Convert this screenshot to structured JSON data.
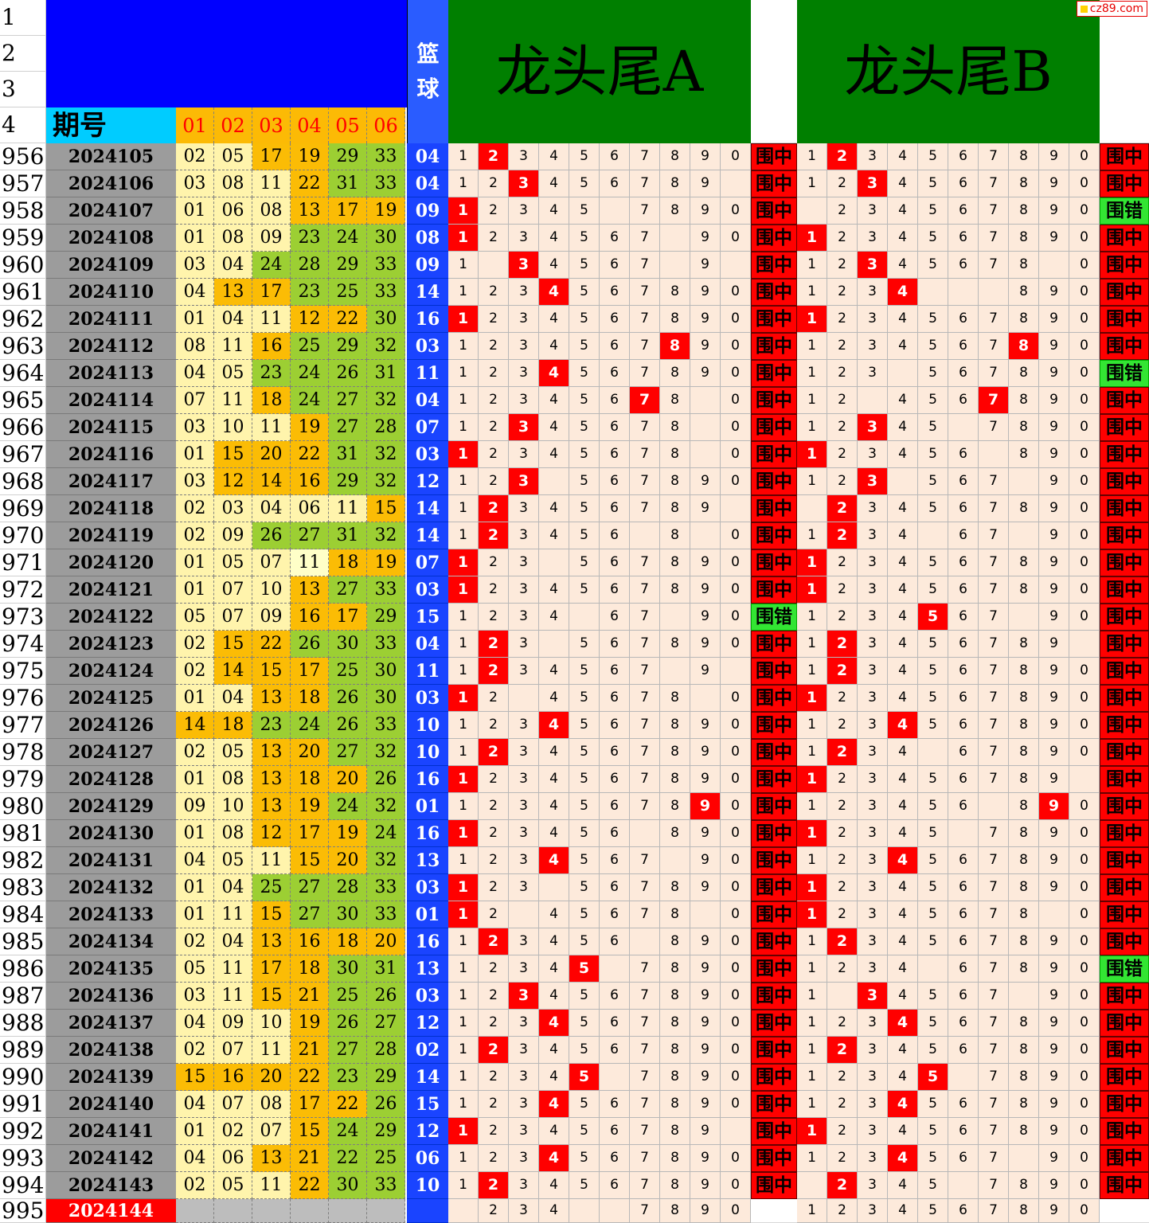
{
  "header": {
    "period_label": "期号",
    "ball_cols": [
      "01",
      "02",
      "03",
      "04",
      "05",
      "06"
    ],
    "basketball_label": [
      "篮",
      "球"
    ],
    "title_a": "龙头尾A",
    "title_b": "龙头尾B",
    "top_row_numbers": [
      "1",
      "2",
      "3",
      "4"
    ],
    "digits": [
      "1",
      "2",
      "3",
      "4",
      "5",
      "6",
      "7",
      "8",
      "9",
      "0"
    ]
  },
  "watermark": "cz89.com",
  "result_labels": {
    "hit": "围中",
    "miss": "围错"
  },
  "colors": {
    "lightyellow": "#fff4ac",
    "green": "#9ccf33",
    "orange": "#fbbc05",
    "basket": "#1a44ff",
    "hit": "#ff0000",
    "miss": "#33e533",
    "period": "#9c9c9c"
  },
  "rows": [
    {
      "n": "956",
      "p": "2024105",
      "nums": [
        "02",
        "05",
        "17",
        "19",
        "29",
        "33"
      ],
      "bg": [
        "lg",
        "lg",
        "o",
        "o",
        "g",
        "g"
      ],
      "bb": "04",
      "a": {
        "hit": "2",
        "empty": []
      },
      "ra": "hit",
      "b": {
        "hit": "2",
        "empty": []
      },
      "rb": "hit"
    },
    {
      "n": "957",
      "p": "2024106",
      "nums": [
        "03",
        "08",
        "11",
        "22",
        "31",
        "33"
      ],
      "bg": [
        "lg",
        "lg",
        "lg",
        "o",
        "g",
        "g"
      ],
      "bb": "04",
      "a": {
        "hit": "3",
        "empty": [
          "0"
        ]
      },
      "ra": "hit",
      "b": {
        "hit": "3",
        "empty": []
      },
      "rb": "hit"
    },
    {
      "n": "958",
      "p": "2024107",
      "nums": [
        "01",
        "06",
        "08",
        "13",
        "17",
        "19"
      ],
      "bg": [
        "lg",
        "lg",
        "lg",
        "o",
        "o",
        "o"
      ],
      "bb": "09",
      "a": {
        "hit": "1",
        "empty": [
          "6"
        ]
      },
      "ra": "hit",
      "b": {
        "hit": "",
        "empty": [
          "1"
        ]
      },
      "rb": "miss"
    },
    {
      "n": "959",
      "p": "2024108",
      "nums": [
        "01",
        "08",
        "09",
        "23",
        "24",
        "30"
      ],
      "bg": [
        "lg",
        "lg",
        "lg",
        "g",
        "g",
        "g"
      ],
      "bb": "08",
      "a": {
        "hit": "1",
        "empty": [
          "8"
        ]
      },
      "ra": "hit",
      "b": {
        "hit": "1",
        "empty": []
      },
      "rb": "hit"
    },
    {
      "n": "960",
      "p": "2024109",
      "nums": [
        "03",
        "04",
        "24",
        "28",
        "29",
        "33"
      ],
      "bg": [
        "lg",
        "lg",
        "g",
        "g",
        "g",
        "g"
      ],
      "bb": "09",
      "a": {
        "hit": "3",
        "empty": [
          "2",
          "8",
          "0"
        ]
      },
      "ra": "hit",
      "b": {
        "hit": "3",
        "empty": [
          "9"
        ]
      },
      "rb": "hit"
    },
    {
      "n": "961",
      "p": "2024110",
      "nums": [
        "04",
        "13",
        "17",
        "23",
        "25",
        "33"
      ],
      "bg": [
        "lg",
        "o",
        "o",
        "g",
        "g",
        "g"
      ],
      "bb": "14",
      "a": {
        "hit": "4",
        "empty": []
      },
      "ra": "hit",
      "b": {
        "hit": "4",
        "empty": [
          "5",
          "6",
          "7"
        ]
      },
      "rb": "hit"
    },
    {
      "n": "962",
      "p": "2024111",
      "nums": [
        "01",
        "04",
        "11",
        "12",
        "22",
        "30"
      ],
      "bg": [
        "lg",
        "lg",
        "lg",
        "o",
        "o",
        "g"
      ],
      "bb": "16",
      "a": {
        "hit": "1",
        "empty": []
      },
      "ra": "hit",
      "b": {
        "hit": "1",
        "empty": []
      },
      "rb": "hit"
    },
    {
      "n": "963",
      "p": "2024112",
      "nums": [
        "08",
        "11",
        "16",
        "25",
        "29",
        "32"
      ],
      "bg": [
        "lg",
        "lg",
        "o",
        "g",
        "g",
        "g"
      ],
      "bb": "03",
      "a": {
        "hit": "8",
        "empty": []
      },
      "ra": "hit",
      "b": {
        "hit": "8",
        "empty": []
      },
      "rb": "hit"
    },
    {
      "n": "964",
      "p": "2024113",
      "nums": [
        "04",
        "05",
        "23",
        "24",
        "26",
        "31"
      ],
      "bg": [
        "lg",
        "lg",
        "g",
        "g",
        "g",
        "g"
      ],
      "bb": "11",
      "a": {
        "hit": "4",
        "empty": []
      },
      "ra": "hit",
      "b": {
        "hit": "",
        "empty": [
          "4"
        ]
      },
      "rb": "miss"
    },
    {
      "n": "965",
      "p": "2024114",
      "nums": [
        "07",
        "11",
        "18",
        "24",
        "27",
        "32"
      ],
      "bg": [
        "lg",
        "lg",
        "o",
        "g",
        "g",
        "g"
      ],
      "bb": "04",
      "a": {
        "hit": "7",
        "empty": [
          "9"
        ]
      },
      "ra": "hit",
      "b": {
        "hit": "7",
        "empty": [
          "3"
        ]
      },
      "rb": "hit"
    },
    {
      "n": "966",
      "p": "2024115",
      "nums": [
        "03",
        "10",
        "11",
        "19",
        "27",
        "28"
      ],
      "bg": [
        "lg",
        "lg",
        "lg",
        "o",
        "g",
        "g"
      ],
      "bb": "07",
      "a": {
        "hit": "3",
        "empty": [
          "9"
        ]
      },
      "ra": "hit",
      "b": {
        "hit": "3",
        "empty": [
          "6"
        ]
      },
      "rb": "hit"
    },
    {
      "n": "967",
      "p": "2024116",
      "nums": [
        "01",
        "15",
        "20",
        "22",
        "31",
        "32"
      ],
      "bg": [
        "lg",
        "o",
        "o",
        "o",
        "g",
        "g"
      ],
      "bb": "03",
      "a": {
        "hit": "1",
        "empty": [
          "9"
        ]
      },
      "ra": "hit",
      "b": {
        "hit": "1",
        "empty": [
          "7"
        ]
      },
      "rb": "hit"
    },
    {
      "n": "968",
      "p": "2024117",
      "nums": [
        "03",
        "12",
        "14",
        "16",
        "29",
        "32"
      ],
      "bg": [
        "lg",
        "o",
        "o",
        "o",
        "g",
        "g"
      ],
      "bb": "12",
      "a": {
        "hit": "3",
        "empty": [
          "4"
        ]
      },
      "ra": "hit",
      "b": {
        "hit": "3",
        "empty": [
          "4",
          "8"
        ]
      },
      "rb": "hit"
    },
    {
      "n": "969",
      "p": "2024118",
      "nums": [
        "02",
        "03",
        "04",
        "06",
        "11",
        "15"
      ],
      "bg": [
        "lg",
        "lg",
        "lg",
        "lg",
        "lg",
        "o"
      ],
      "bb": "14",
      "a": {
        "hit": "2",
        "empty": [
          "0"
        ]
      },
      "ra": "hit",
      "b": {
        "hit": "2",
        "empty": [
          "1"
        ]
      },
      "rb": "hit"
    },
    {
      "n": "970",
      "p": "2024119",
      "nums": [
        "02",
        "09",
        "26",
        "27",
        "31",
        "32"
      ],
      "bg": [
        "lg",
        "lg",
        "g",
        "g",
        "g",
        "g"
      ],
      "bb": "14",
      "a": {
        "hit": "2",
        "empty": [
          "7",
          "9"
        ]
      },
      "ra": "hit",
      "b": {
        "hit": "2",
        "empty": [
          "5",
          "8"
        ]
      },
      "rb": "hit"
    },
    {
      "n": "971",
      "p": "2024120",
      "nums": [
        "01",
        "05",
        "07",
        "11",
        "18",
        "19"
      ],
      "bg": [
        "lg",
        "lg",
        "lg",
        "ly",
        "o",
        "o"
      ],
      "bb": "07",
      "a": {
        "hit": "1",
        "empty": [
          "4"
        ]
      },
      "ra": "hit",
      "b": {
        "hit": "1",
        "empty": []
      },
      "rb": "hit"
    },
    {
      "n": "972",
      "p": "2024121",
      "nums": [
        "01",
        "07",
        "10",
        "13",
        "27",
        "33"
      ],
      "bg": [
        "lg",
        "lg",
        "lg",
        "o",
        "g",
        "g"
      ],
      "bb": "03",
      "a": {
        "hit": "1",
        "empty": []
      },
      "ra": "hit",
      "b": {
        "hit": "1",
        "empty": []
      },
      "rb": "hit"
    },
    {
      "n": "973",
      "p": "2024122",
      "nums": [
        "05",
        "07",
        "09",
        "16",
        "17",
        "29"
      ],
      "bg": [
        "lg",
        "lg",
        "lg",
        "o",
        "o",
        "g"
      ],
      "bb": "15",
      "a": {
        "hit": "",
        "empty": [
          "5",
          "8"
        ]
      },
      "ra": "miss",
      "b": {
        "hit": "5",
        "empty": [
          "8"
        ]
      },
      "rb": "hit"
    },
    {
      "n": "974",
      "p": "2024123",
      "nums": [
        "02",
        "15",
        "22",
        "26",
        "30",
        "33"
      ],
      "bg": [
        "lg",
        "o",
        "o",
        "g",
        "g",
        "g"
      ],
      "bb": "04",
      "a": {
        "hit": "2",
        "empty": [
          "4"
        ]
      },
      "ra": "hit",
      "b": {
        "hit": "2",
        "empty": [
          "0"
        ]
      },
      "rb": "hit"
    },
    {
      "n": "975",
      "p": "2024124",
      "nums": [
        "02",
        "14",
        "15",
        "17",
        "25",
        "30"
      ],
      "bg": [
        "lg",
        "o",
        "o",
        "o",
        "g",
        "g"
      ],
      "bb": "11",
      "a": {
        "hit": "2",
        "empty": [
          "8",
          "0"
        ]
      },
      "ra": "hit",
      "b": {
        "hit": "2",
        "empty": []
      },
      "rb": "hit"
    },
    {
      "n": "976",
      "p": "2024125",
      "nums": [
        "01",
        "04",
        "13",
        "18",
        "26",
        "30"
      ],
      "bg": [
        "lg",
        "lg",
        "o",
        "o",
        "g",
        "g"
      ],
      "bb": "03",
      "a": {
        "hit": "1",
        "empty": [
          "3",
          "9"
        ]
      },
      "ra": "hit",
      "b": {
        "hit": "1",
        "empty": []
      },
      "rb": "hit"
    },
    {
      "n": "977",
      "p": "2024126",
      "nums": [
        "14",
        "18",
        "23",
        "24",
        "26",
        "33"
      ],
      "bg": [
        "o",
        "o",
        "g",
        "g",
        "g",
        "g"
      ],
      "bb": "10",
      "a": {
        "hit": "4",
        "empty": []
      },
      "ra": "hit",
      "b": {
        "hit": "4",
        "empty": []
      },
      "rb": "hit"
    },
    {
      "n": "978",
      "p": "2024127",
      "nums": [
        "02",
        "05",
        "13",
        "20",
        "27",
        "32"
      ],
      "bg": [
        "lg",
        "lg",
        "o",
        "o",
        "g",
        "g"
      ],
      "bb": "10",
      "a": {
        "hit": "2",
        "empty": []
      },
      "ra": "hit",
      "b": {
        "hit": "2",
        "empty": [
          "5"
        ]
      },
      "rb": "hit"
    },
    {
      "n": "979",
      "p": "2024128",
      "nums": [
        "01",
        "08",
        "13",
        "18",
        "20",
        "26"
      ],
      "bg": [
        "lg",
        "lg",
        "o",
        "o",
        "o",
        "g"
      ],
      "bb": "16",
      "a": {
        "hit": "1",
        "empty": []
      },
      "ra": "hit",
      "b": {
        "hit": "1",
        "empty": [
          "0"
        ]
      },
      "rb": "hit"
    },
    {
      "n": "980",
      "p": "2024129",
      "nums": [
        "09",
        "10",
        "13",
        "19",
        "24",
        "32"
      ],
      "bg": [
        "lg",
        "lg",
        "o",
        "o",
        "g",
        "g"
      ],
      "bb": "01",
      "a": {
        "hit": "9",
        "empty": []
      },
      "ra": "hit",
      "b": {
        "hit": "9",
        "empty": [
          "7"
        ]
      },
      "rb": "hit"
    },
    {
      "n": "981",
      "p": "2024130",
      "nums": [
        "01",
        "08",
        "12",
        "17",
        "19",
        "24"
      ],
      "bg": [
        "lg",
        "lg",
        "o",
        "o",
        "o",
        "g"
      ],
      "bb": "16",
      "a": {
        "hit": "1",
        "empty": [
          "7"
        ]
      },
      "ra": "hit",
      "b": {
        "hit": "1",
        "empty": [
          "6"
        ]
      },
      "rb": "hit"
    },
    {
      "n": "982",
      "p": "2024131",
      "nums": [
        "04",
        "05",
        "11",
        "15",
        "20",
        "32"
      ],
      "bg": [
        "lg",
        "lg",
        "lg",
        "o",
        "o",
        "g"
      ],
      "bb": "13",
      "a": {
        "hit": "4",
        "empty": [
          "8"
        ]
      },
      "ra": "hit",
      "b": {
        "hit": "4",
        "empty": []
      },
      "rb": "hit"
    },
    {
      "n": "983",
      "p": "2024132",
      "nums": [
        "01",
        "04",
        "25",
        "27",
        "28",
        "33"
      ],
      "bg": [
        "lg",
        "lg",
        "g",
        "g",
        "g",
        "g"
      ],
      "bb": "03",
      "a": {
        "hit": "1",
        "empty": [
          "4"
        ]
      },
      "ra": "hit",
      "b": {
        "hit": "1",
        "empty": []
      },
      "rb": "hit"
    },
    {
      "n": "984",
      "p": "2024133",
      "nums": [
        "01",
        "11",
        "15",
        "27",
        "30",
        "33"
      ],
      "bg": [
        "lg",
        "lg",
        "o",
        "g",
        "g",
        "g"
      ],
      "bb": "01",
      "a": {
        "hit": "1",
        "empty": [
          "3",
          "9"
        ]
      },
      "ra": "hit",
      "b": {
        "hit": "1",
        "empty": [
          "9"
        ]
      },
      "rb": "hit"
    },
    {
      "n": "985",
      "p": "2024134",
      "nums": [
        "02",
        "04",
        "13",
        "16",
        "18",
        "20"
      ],
      "bg": [
        "lg",
        "lg",
        "o",
        "o",
        "o",
        "o"
      ],
      "bb": "16",
      "a": {
        "hit": "2",
        "empty": [
          "7"
        ]
      },
      "ra": "hit",
      "b": {
        "hit": "2",
        "empty": []
      },
      "rb": "hit"
    },
    {
      "n": "986",
      "p": "2024135",
      "nums": [
        "05",
        "11",
        "17",
        "18",
        "30",
        "31"
      ],
      "bg": [
        "lg",
        "lg",
        "o",
        "o",
        "g",
        "g"
      ],
      "bb": "13",
      "a": {
        "hit": "5",
        "empty": [
          "6"
        ]
      },
      "ra": "hit",
      "b": {
        "hit": "",
        "empty": [
          "5"
        ]
      },
      "rb": "miss"
    },
    {
      "n": "987",
      "p": "2024136",
      "nums": [
        "03",
        "11",
        "15",
        "21",
        "25",
        "26"
      ],
      "bg": [
        "lg",
        "lg",
        "o",
        "o",
        "g",
        "g"
      ],
      "bb": "03",
      "a": {
        "hit": "3",
        "empty": []
      },
      "ra": "hit",
      "b": {
        "hit": "3",
        "empty": [
          "2",
          "8"
        ]
      },
      "rb": "hit"
    },
    {
      "n": "988",
      "p": "2024137",
      "nums": [
        "04",
        "09",
        "10",
        "19",
        "26",
        "27"
      ],
      "bg": [
        "lg",
        "lg",
        "lg",
        "o",
        "g",
        "g"
      ],
      "bb": "12",
      "a": {
        "hit": "4",
        "empty": []
      },
      "ra": "hit",
      "b": {
        "hit": "4",
        "empty": []
      },
      "rb": "hit"
    },
    {
      "n": "989",
      "p": "2024138",
      "nums": [
        "02",
        "07",
        "11",
        "21",
        "27",
        "28"
      ],
      "bg": [
        "lg",
        "lg",
        "lg",
        "o",
        "g",
        "g"
      ],
      "bb": "02",
      "a": {
        "hit": "2",
        "empty": []
      },
      "ra": "hit",
      "b": {
        "hit": "2",
        "empty": []
      },
      "rb": "hit"
    },
    {
      "n": "990",
      "p": "2024139",
      "nums": [
        "15",
        "16",
        "20",
        "22",
        "23",
        "29"
      ],
      "bg": [
        "o",
        "o",
        "o",
        "o",
        "g",
        "g"
      ],
      "bb": "14",
      "a": {
        "hit": "5",
        "empty": [
          "6"
        ]
      },
      "ra": "hit",
      "b": {
        "hit": "5",
        "empty": [
          "6"
        ]
      },
      "rb": "hit"
    },
    {
      "n": "991",
      "p": "2024140",
      "nums": [
        "04",
        "07",
        "08",
        "17",
        "22",
        "26"
      ],
      "bg": [
        "lg",
        "lg",
        "lg",
        "o",
        "o",
        "g"
      ],
      "bb": "15",
      "a": {
        "hit": "4",
        "empty": []
      },
      "ra": "hit",
      "b": {
        "hit": "4",
        "empty": []
      },
      "rb": "hit"
    },
    {
      "n": "992",
      "p": "2024141",
      "nums": [
        "01",
        "02",
        "07",
        "15",
        "24",
        "29"
      ],
      "bg": [
        "lg",
        "lg",
        "lg",
        "o",
        "g",
        "g"
      ],
      "bb": "12",
      "a": {
        "hit": "1",
        "empty": [
          "0"
        ]
      },
      "ra": "hit",
      "b": {
        "hit": "1",
        "empty": []
      },
      "rb": "hit"
    },
    {
      "n": "993",
      "p": "2024142",
      "nums": [
        "04",
        "06",
        "13",
        "21",
        "22",
        "25"
      ],
      "bg": [
        "lg",
        "lg",
        "o",
        "o",
        "g",
        "g"
      ],
      "bb": "06",
      "a": {
        "hit": "4",
        "empty": []
      },
      "ra": "hit",
      "b": {
        "hit": "4",
        "empty": [
          "8"
        ]
      },
      "rb": "hit"
    },
    {
      "n": "994",
      "p": "2024143",
      "nums": [
        "02",
        "05",
        "11",
        "22",
        "30",
        "33"
      ],
      "bg": [
        "lg",
        "lg",
        "lg",
        "o",
        "g",
        "g"
      ],
      "bb": "10",
      "a": {
        "hit": "2",
        "empty": []
      },
      "ra": "hit",
      "b": {
        "hit": "2",
        "empty": [
          "1",
          "6"
        ]
      },
      "rb": "hit"
    }
  ],
  "last_row": {
    "n": "995",
    "p": "2024144",
    "a_shown": [
      "2",
      "3",
      "4",
      "7",
      "8",
      "9",
      "0"
    ],
    "b_shown": [
      "1",
      "2",
      "3",
      "4",
      "5",
      "6",
      "7",
      "8",
      "9",
      "0"
    ]
  }
}
